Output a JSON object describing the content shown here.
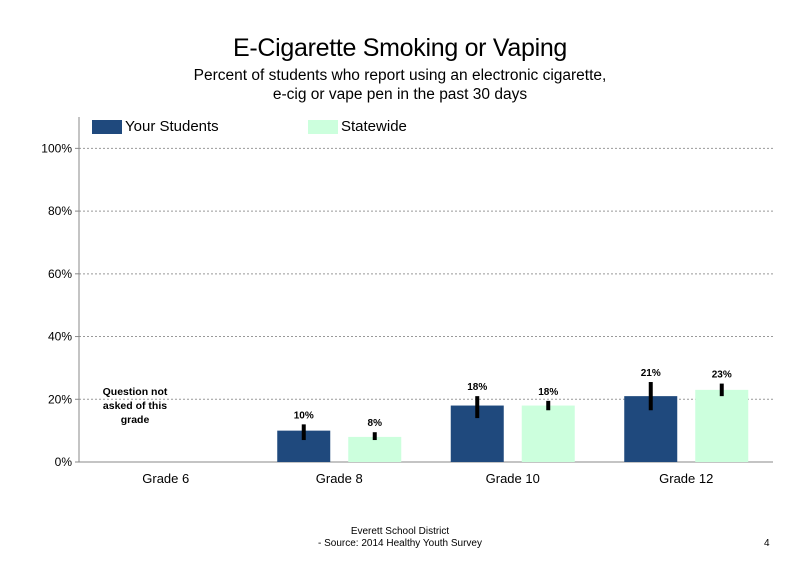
{
  "chart_data": {
    "type": "bar",
    "title": "E-Cigarette Smoking or Vaping",
    "subtitle": "Percent of students  who report using an electronic cigarette, e-cig or vape pen in the past 30 days",
    "categories": [
      "Grade 6",
      "Grade 8",
      "Grade 10",
      "Grade 12"
    ],
    "series": [
      {
        "name": "Your Students",
        "color": "#1f497d",
        "values": [
          null,
          10,
          18,
          21
        ],
        "labels": [
          "",
          "10%",
          "18%",
          "21%"
        ],
        "error_low": [
          null,
          7,
          14,
          16.5
        ],
        "error_high": [
          null,
          12,
          21,
          25.5
        ]
      },
      {
        "name": "Statewide",
        "color": "#ccffdd",
        "values": [
          null,
          8,
          18,
          23
        ],
        "labels": [
          "",
          "8%",
          "18%",
          "23%"
        ],
        "error_low": [
          null,
          7,
          16.5,
          21
        ],
        "error_high": [
          null,
          9.5,
          19.5,
          25
        ]
      }
    ],
    "ylim": [
      0,
      110
    ],
    "yticks": [
      0,
      20,
      40,
      60,
      80,
      100
    ],
    "ytick_labels": [
      "0%",
      "20%",
      "40%",
      "60%",
      "80%",
      "100%"
    ],
    "grid": true,
    "legend_position": "top-left",
    "annotation": "Question not asked of this grade"
  },
  "footer": {
    "line1": "Everett School District",
    "line2": "- Source: 2014 Healthy  Youth Survey"
  },
  "page_number": "4"
}
